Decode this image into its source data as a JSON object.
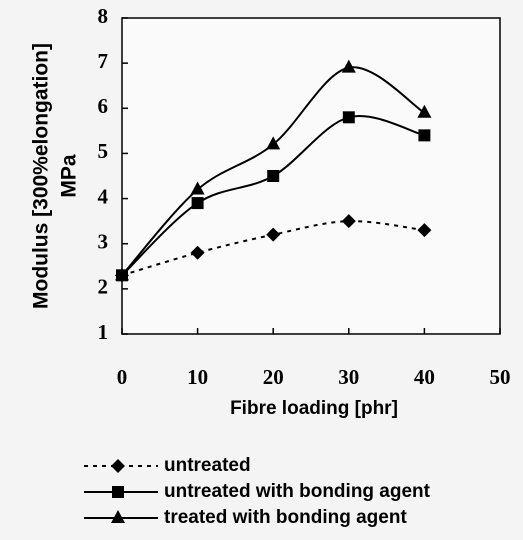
{
  "chart_data": {
    "type": "line",
    "ylabel": "Modulus [300%elongation]",
    "ylabel2": "MPa",
    "xlabel": "Fibre loading [phr]",
    "x": [
      0,
      10,
      20,
      30,
      40
    ],
    "series": [
      {
        "name": "untreated",
        "color": "#000000",
        "marker": "diamond",
        "dashed": true,
        "values": [
          2.3,
          2.8,
          3.2,
          3.5,
          3.3
        ]
      },
      {
        "name": "untreated with bonding agent",
        "color": "#000000",
        "marker": "square",
        "dashed": false,
        "values": [
          2.3,
          3.9,
          4.5,
          5.8,
          5.4
        ]
      },
      {
        "name": "treated with bonding agent",
        "color": "#000000",
        "marker": "triangle",
        "dashed": false,
        "values": [
          2.3,
          4.2,
          5.2,
          6.9,
          5.9
        ]
      }
    ],
    "xlim": [
      0,
      50
    ],
    "xticks": [
      0,
      10,
      20,
      30,
      40,
      50
    ],
    "ylim": [
      1,
      8
    ],
    "yticks": [
      1,
      2,
      3,
      4,
      5,
      6,
      7,
      8
    ]
  }
}
